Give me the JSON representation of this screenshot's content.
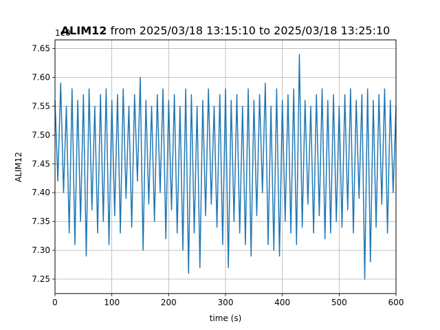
{
  "chart_data": {
    "type": "line",
    "title_bold": "ALIM12",
    "title_rest": " from 2025/03/18 13:15:10 to 2025/03/18 13:25:10",
    "xlabel": "time (s)",
    "ylabel": "ALIM12",
    "offset_label": "1e0",
    "xlim": [
      0,
      600
    ],
    "ylim": [
      7.225,
      7.665
    ],
    "x_ticks": [
      0,
      100,
      200,
      300,
      400,
      500,
      600
    ],
    "y_ticks": [
      7.25,
      7.3,
      7.35,
      7.4,
      7.45,
      7.5,
      7.55,
      7.6,
      7.65
    ],
    "y_tick_labels": [
      "7.25",
      "7.30",
      "7.35",
      "7.40",
      "7.45",
      "7.50",
      "7.55",
      "7.60",
      "7.65"
    ],
    "grid": true,
    "series_color": "#1f77b4",
    "series": [
      {
        "x": [
          0,
          5,
          10,
          15,
          20,
          25,
          30,
          35,
          40,
          45,
          50,
          55,
          60,
          65,
          70,
          75,
          80,
          85,
          90,
          95,
          100,
          105,
          110,
          115,
          120,
          125,
          130,
          135,
          140,
          145,
          150,
          155,
          160,
          165,
          170,
          175,
          180,
          185,
          190,
          195,
          200,
          205,
          210,
          215,
          220,
          225,
          230,
          235,
          240,
          245,
          250,
          255,
          260,
          265,
          270,
          275,
          280,
          285,
          290,
          295,
          300,
          305,
          310,
          315,
          320,
          325,
          330,
          335,
          340,
          345,
          350,
          355,
          360,
          365,
          370,
          375,
          380,
          385,
          390,
          395,
          400,
          405,
          410,
          415,
          420,
          425,
          430,
          435,
          440,
          445,
          450,
          455,
          460,
          465,
          470,
          475,
          480,
          485,
          490,
          495,
          500,
          505,
          510,
          515,
          520,
          525,
          530,
          535,
          540,
          545,
          550,
          555,
          560,
          565,
          570,
          575,
          580,
          585,
          590,
          595,
          600
        ],
        "values": [
          7.56,
          7.42,
          7.59,
          7.4,
          7.55,
          7.33,
          7.58,
          7.31,
          7.56,
          7.35,
          7.57,
          7.29,
          7.58,
          7.37,
          7.55,
          7.33,
          7.57,
          7.35,
          7.58,
          7.31,
          7.56,
          7.36,
          7.57,
          7.33,
          7.58,
          7.39,
          7.55,
          7.34,
          7.57,
          7.42,
          7.6,
          7.3,
          7.56,
          7.38,
          7.55,
          7.35,
          7.57,
          7.4,
          7.58,
          7.32,
          7.56,
          7.37,
          7.57,
          7.33,
          7.55,
          7.3,
          7.58,
          7.26,
          7.57,
          7.33,
          7.55,
          7.27,
          7.56,
          7.36,
          7.58,
          7.38,
          7.55,
          7.34,
          7.57,
          7.31,
          7.58,
          7.27,
          7.56,
          7.35,
          7.57,
          7.33,
          7.55,
          7.31,
          7.58,
          7.29,
          7.56,
          7.36,
          7.57,
          7.4,
          7.59,
          7.31,
          7.55,
          7.3,
          7.58,
          7.29,
          7.56,
          7.35,
          7.57,
          7.33,
          7.58,
          7.31,
          7.64,
          7.34,
          7.56,
          7.38,
          7.55,
          7.33,
          7.57,
          7.36,
          7.58,
          7.32,
          7.56,
          7.33,
          7.57,
          7.35,
          7.55,
          7.34,
          7.57,
          7.37,
          7.58,
          7.33,
          7.56,
          7.39,
          7.57,
          7.25,
          7.58,
          7.28,
          7.56,
          7.34,
          7.57,
          7.38,
          7.58,
          7.33,
          7.56,
          7.4,
          7.55
        ]
      }
    ]
  }
}
